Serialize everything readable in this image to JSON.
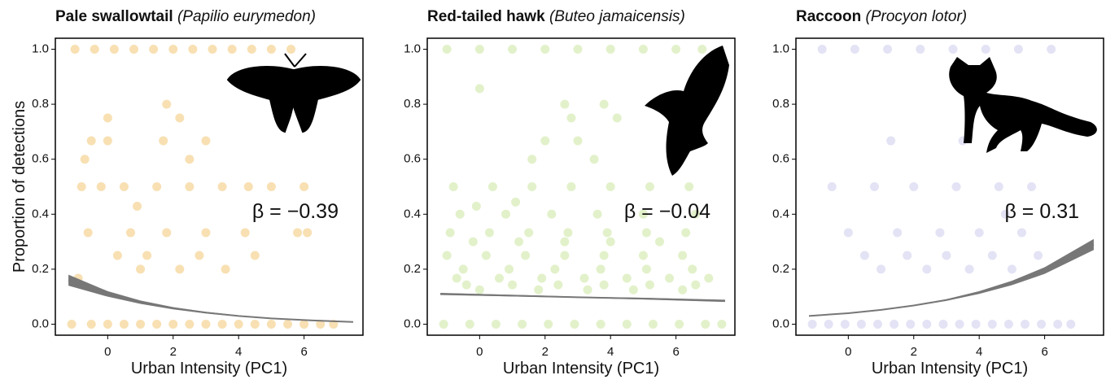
{
  "chart_data": [
    {
      "type": "scatter",
      "title": "Pale swallowtail",
      "subtitle": "(Papilio eurymedon)",
      "xlabel": "Urban Intensity (PC1)",
      "ylabel": "Proportion of detections",
      "annotation": "β = −0.39",
      "xlim": [
        -1.6,
        7.8
      ],
      "ylim": [
        -0.04,
        1.04
      ],
      "xticks": [
        0,
        2,
        4,
        6
      ],
      "yticks": [
        {
          "value": 0,
          "label": "0.0"
        },
        0.2,
        0.4,
        0.6,
        0.8,
        {
          "value": 1,
          "label": "1.0"
        }
      ],
      "color": "#f3c674",
      "alpha": 0.55,
      "x": [
        -1.1,
        -0.5,
        0,
        0.5,
        1,
        1.5,
        2,
        2.5,
        3,
        3.5,
        4,
        4.5,
        5,
        5.5,
        6,
        6.5,
        6.9,
        -1,
        -0.4,
        0.2,
        0.8,
        1.4,
        2,
        2.6,
        3.2,
        3.8,
        4.4,
        5,
        5.6,
        -0.8,
        -0.2,
        0.5,
        1.5,
        2.5,
        3.5,
        4.3,
        5,
        6,
        -0.6,
        0.7,
        1.8,
        3,
        4.2,
        5.8,
        6.1,
        -0.5,
        0,
        1.7,
        3,
        0.3,
        1.2,
        2.8,
        4.5,
        1,
        2.2,
        3.6,
        0,
        2.2,
        1.8,
        -0.7,
        2.5,
        0.9,
        -0.9
      ],
      "values": [
        0,
        0,
        0,
        0,
        0,
        0,
        0,
        0,
        0,
        0,
        0,
        0,
        0,
        0,
        0,
        0,
        0,
        1,
        1,
        1,
        1,
        1,
        1,
        1,
        1,
        1,
        1,
        1,
        1,
        0.5,
        0.5,
        0.5,
        0.5,
        0.5,
        0.5,
        0.5,
        0.5,
        0.5,
        0.333,
        0.333,
        0.333,
        0.333,
        0.333,
        0.333,
        0.333,
        0.667,
        0.667,
        0.667,
        0.667,
        0.25,
        0.25,
        0.25,
        0.25,
        0.2,
        0.2,
        0.2,
        0.75,
        0.75,
        0.8,
        0.6,
        0.6,
        0.429,
        0.167
      ],
      "fit_color": "#777777",
      "fit": {
        "x": [
          -1.2,
          0,
          1,
          2,
          3,
          4,
          5,
          6,
          7.5
        ],
        "values": [
          0.16,
          0.11,
          0.08,
          0.058,
          0.042,
          0.03,
          0.021,
          0.015,
          0.008
        ],
        "lower": [
          0.14,
          0.1,
          0.074,
          0.054,
          0.039,
          0.028,
          0.019,
          0.013,
          0.006
        ],
        "upper": [
          0.18,
          0.12,
          0.086,
          0.062,
          0.045,
          0.032,
          0.023,
          0.017,
          0.01
        ]
      }
    },
    {
      "type": "scatter",
      "title": "Red-tailed hawk",
      "subtitle": "(Buteo jamaicensis)",
      "xlabel": "Urban Intensity (PC1)",
      "annotation": "β = −0.04",
      "xlim": [
        -1.6,
        7.8
      ],
      "ylim": [
        -0.04,
        1.04
      ],
      "xticks": [
        0,
        2,
        4,
        6
      ],
      "yticks": [
        {
          "value": 0,
          "label": "0.0"
        },
        0.2,
        0.4,
        0.6,
        0.8,
        {
          "value": 1,
          "label": "1.0"
        }
      ],
      "color": "#cfe8a6",
      "alpha": 0.6,
      "x": [
        -1.1,
        -0.3,
        0.5,
        1.3,
        2.1,
        2.9,
        3.7,
        4.5,
        5.3,
        6.1,
        6.9,
        7.4,
        -1,
        0,
        1,
        2,
        3,
        4,
        5,
        6,
        6.8,
        -0.8,
        0.4,
        1.6,
        2.8,
        4,
        5.2,
        6.4,
        -0.9,
        0.3,
        1.5,
        2.7,
        3.9,
        5.1,
        6.3,
        -0.6,
        0.8,
        2.2,
        3.6,
        5,
        6.6,
        -1,
        0.2,
        1.4,
        2.6,
        3.8,
        5,
        6.2,
        -0.5,
        0.9,
        2.3,
        3.7,
        5.1,
        6.5,
        -0.7,
        0.6,
        1.9,
        3.2,
        4.5,
        5.8,
        7,
        -0.4,
        1,
        2.4,
        3.8,
        5.2,
        6.6,
        0,
        1.8,
        3.3,
        4.7,
        6.2,
        -0.2,
        1.2,
        2.6,
        4,
        5.5,
        2,
        3,
        3.5,
        1.6,
        2.8,
        0,
        2.6,
        3.8,
        4.2,
        -0.1,
        1.1
      ],
      "values": [
        0,
        0,
        0,
        0,
        0,
        0,
        0,
        0,
        0,
        0,
        0,
        0,
        1,
        1,
        1,
        1,
        1,
        1,
        1,
        1,
        1,
        0.5,
        0.5,
        0.5,
        0.5,
        0.5,
        0.5,
        0.5,
        0.333,
        0.333,
        0.333,
        0.333,
        0.333,
        0.333,
        0.333,
        0.4,
        0.4,
        0.4,
        0.4,
        0.4,
        0.4,
        0.25,
        0.25,
        0.25,
        0.25,
        0.25,
        0.25,
        0.25,
        0.2,
        0.2,
        0.2,
        0.2,
        0.2,
        0.2,
        0.167,
        0.167,
        0.167,
        0.167,
        0.167,
        0.167,
        0.167,
        0.143,
        0.143,
        0.143,
        0.143,
        0.143,
        0.143,
        0.125,
        0.125,
        0.125,
        0.125,
        0.125,
        0.3,
        0.3,
        0.3,
        0.3,
        0.3,
        0.667,
        0.667,
        0.6,
        0.6,
        0.75,
        0.857,
        0.8,
        0.8,
        0.75,
        0.429,
        0.444
      ],
      "fit_color": "#777777",
      "fit": {
        "x": [
          -1.2,
          1,
          3,
          5,
          7.5
        ],
        "values": [
          0.11,
          0.104,
          0.098,
          0.093,
          0.085
        ],
        "lower": [
          0.106,
          0.101,
          0.096,
          0.09,
          0.081
        ],
        "upper": [
          0.114,
          0.107,
          0.1,
          0.096,
          0.089
        ]
      }
    },
    {
      "type": "scatter",
      "title": "Raccoon",
      "subtitle": "(Procyon lotor)",
      "xlabel": "Urban Intensity (PC1)",
      "annotation": "β = 0.31",
      "xlim": [
        -1.6,
        7.8
      ],
      "ylim": [
        -0.04,
        1.04
      ],
      "xticks": [
        0,
        2,
        4,
        6
      ],
      "yticks": [
        {
          "value": 0,
          "label": "0.0"
        },
        0.2,
        0.4,
        0.6,
        0.8,
        {
          "value": 1,
          "label": "1.0"
        }
      ],
      "color": "#8e8ed8",
      "alpha": 0.25,
      "x": [
        -1.1,
        -0.6,
        -0.1,
        0.4,
        0.9,
        1.4,
        1.9,
        2.4,
        2.9,
        3.4,
        3.9,
        4.4,
        4.9,
        5.4,
        5.9,
        6.4,
        6.8,
        -0.8,
        0.2,
        1.2,
        2.2,
        3.2,
        4.2,
        5.2,
        6.2,
        -0.5,
        0.8,
        2,
        3.3,
        4.6,
        5.6,
        0,
        1.5,
        2.8,
        4,
        5.3,
        0.5,
        1.8,
        3,
        4.4,
        5.8,
        1,
        2.4,
        3.7,
        5,
        1.3,
        3.5,
        4.8
      ],
      "values": [
        0,
        0,
        0,
        0,
        0,
        0,
        0,
        0,
        0,
        0,
        0,
        0,
        0,
        0,
        0,
        0,
        0,
        1,
        1,
        1,
        1,
        1,
        1,
        1,
        1,
        0.5,
        0.5,
        0.5,
        0.5,
        0.5,
        0.5,
        0.333,
        0.333,
        0.333,
        0.333,
        0.333,
        0.25,
        0.25,
        0.25,
        0.25,
        0.25,
        0.2,
        0.2,
        0.2,
        0.2,
        0.667,
        0.667,
        0.4
      ],
      "fit_color": "#777777",
      "fit": {
        "x": [
          -1.2,
          0,
          1,
          2,
          3,
          4,
          5,
          6,
          7.5
        ],
        "values": [
          0.03,
          0.04,
          0.052,
          0.068,
          0.088,
          0.115,
          0.15,
          0.195,
          0.29
        ],
        "lower": [
          0.028,
          0.038,
          0.05,
          0.066,
          0.085,
          0.11,
          0.142,
          0.183,
          0.27
        ],
        "upper": [
          0.032,
          0.042,
          0.054,
          0.07,
          0.091,
          0.12,
          0.158,
          0.207,
          0.31
        ]
      }
    }
  ]
}
